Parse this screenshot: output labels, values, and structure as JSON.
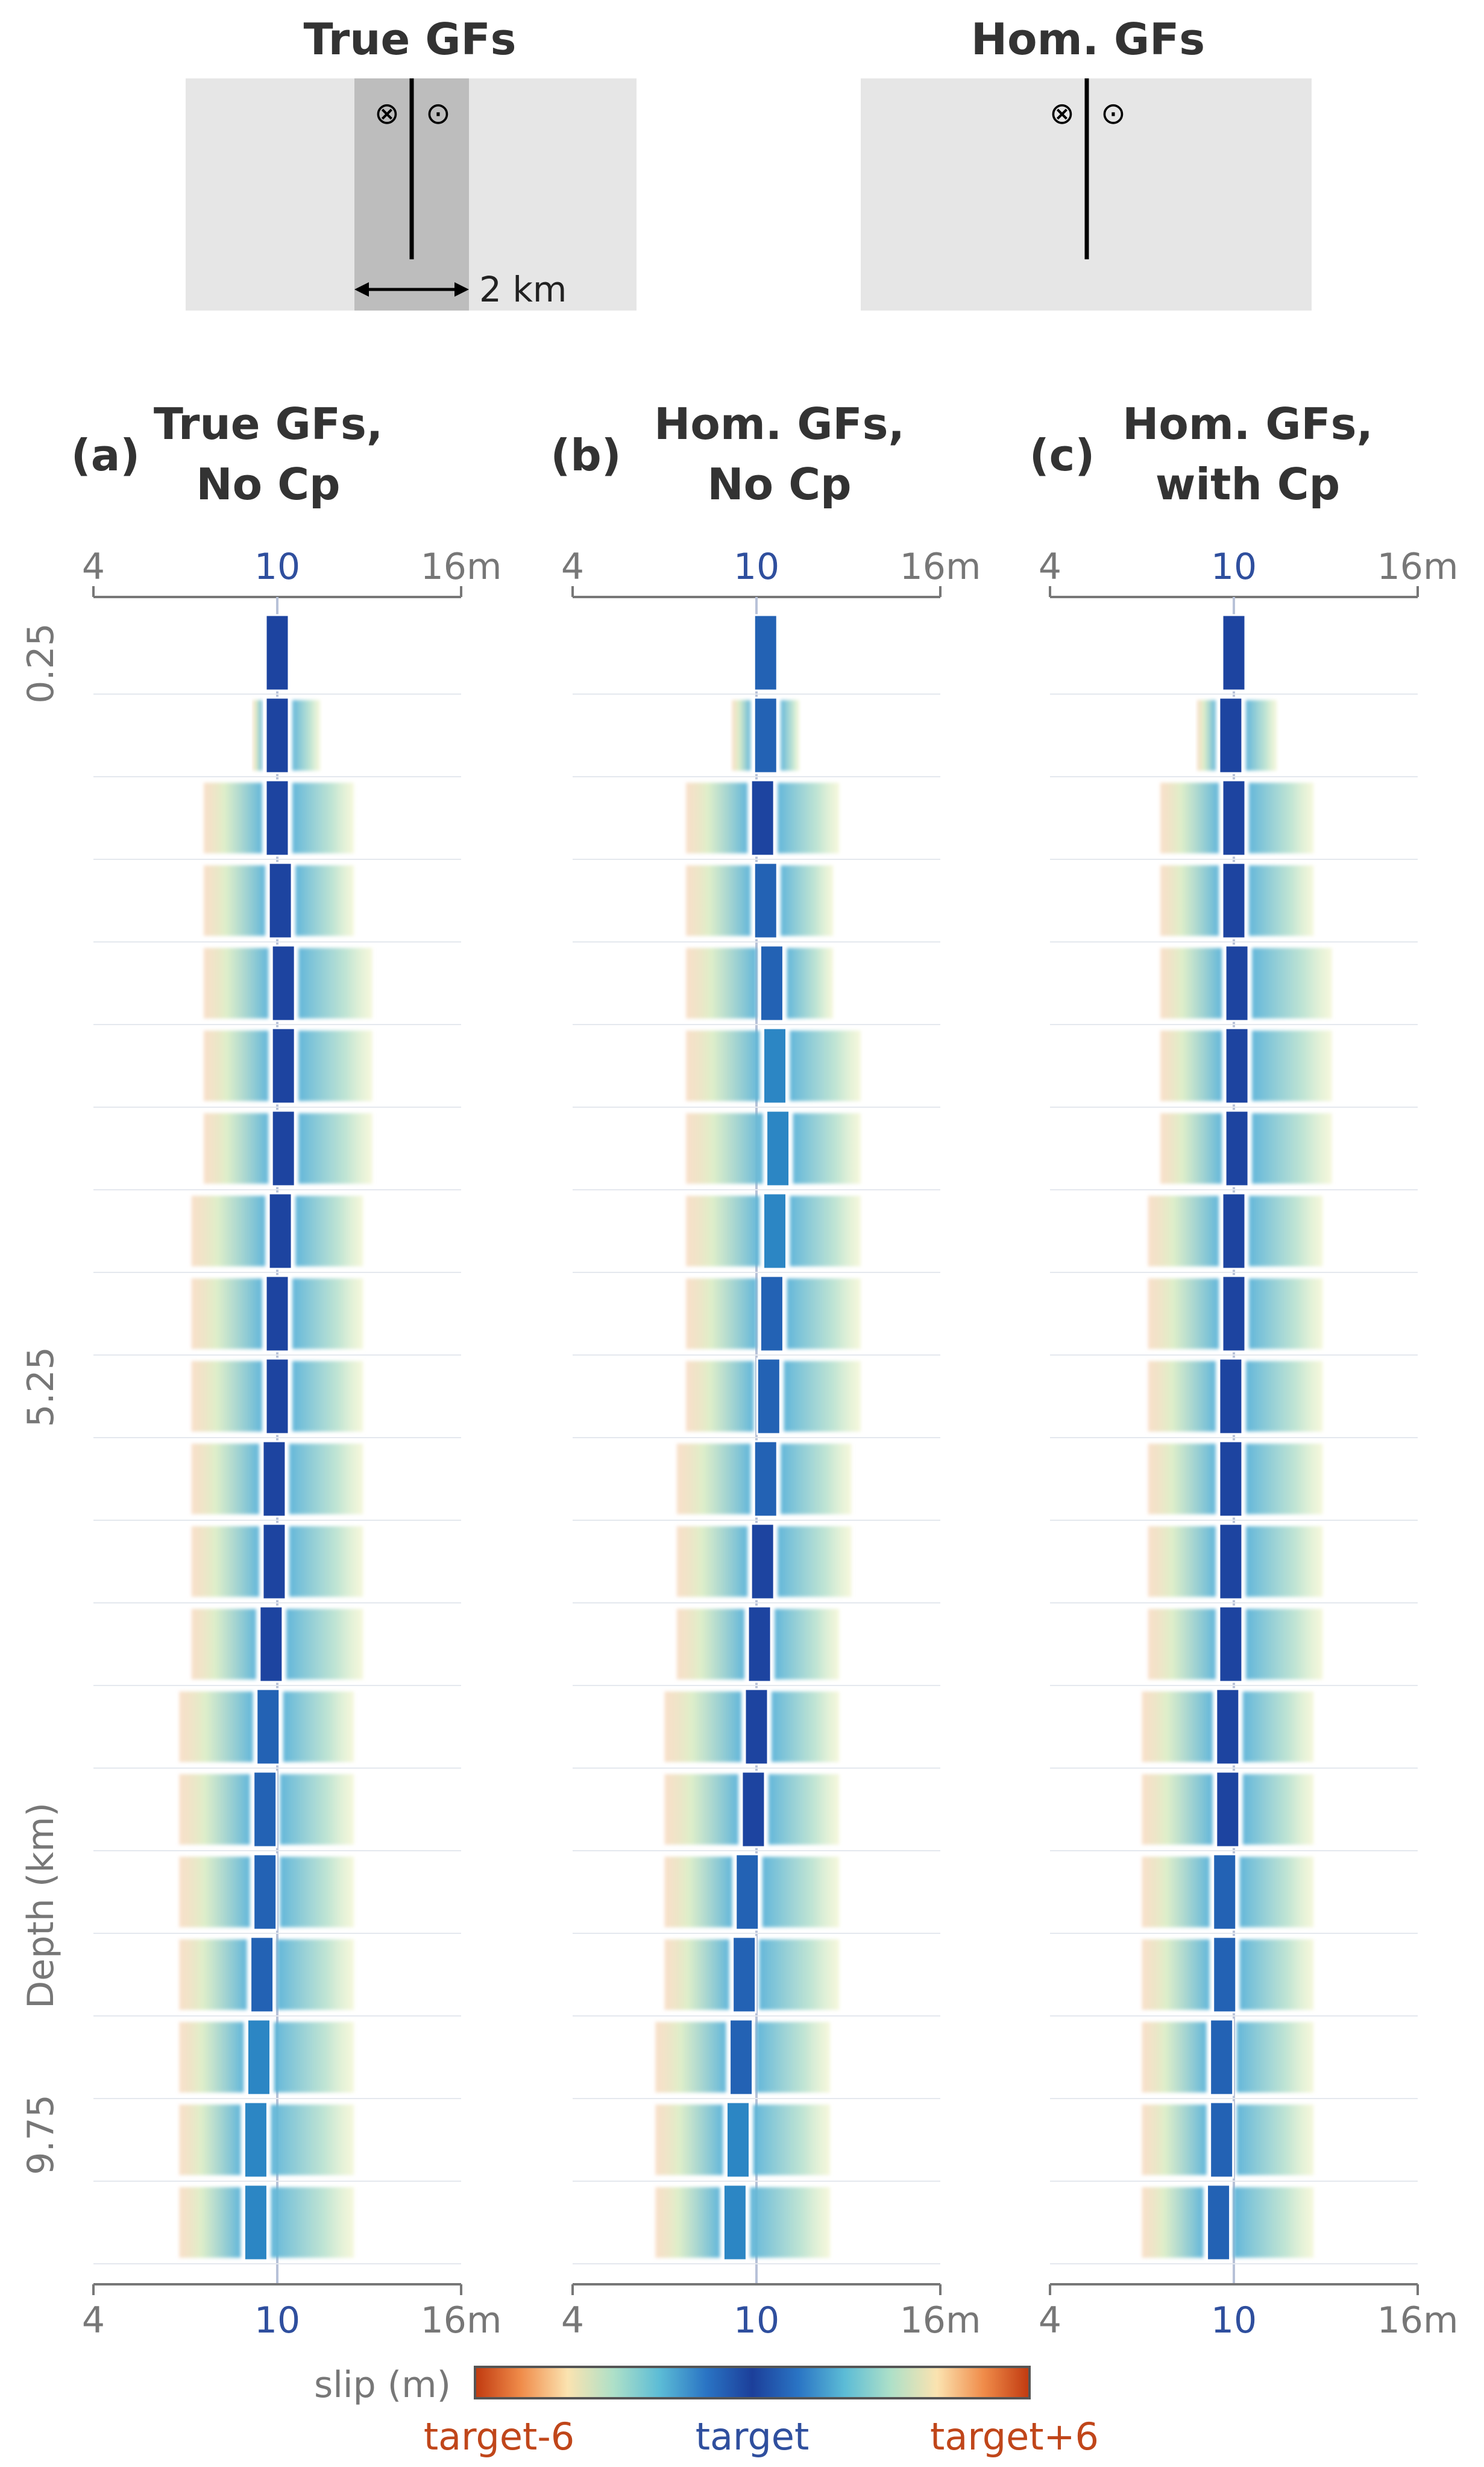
{
  "schematics": [
    {
      "title": "True GFs",
      "strike_left": "⊗",
      "strike_right": "⊙",
      "width_label": "2 km"
    },
    {
      "title": "Hom. GFs",
      "strike_left": "⊗",
      "strike_right": "⊙"
    }
  ],
  "panels": [
    {
      "label": "(a)",
      "title_line1": "True GFs,",
      "title_line2": "No Cp"
    },
    {
      "label": "(b)",
      "title_line1": "Hom. GFs,",
      "title_line2": "No Cp"
    },
    {
      "label": "(c)",
      "title_line1": "Hom. GFs,",
      "title_line2": "with Cp"
    }
  ],
  "axis": {
    "tick_min": "4",
    "tick_mid": "10",
    "tick_max": "16m",
    "x_min": 4,
    "x_mid": 10,
    "x_max": 16,
    "depth_ticks": [
      "0.25",
      "5.25",
      "9.75"
    ],
    "depth_label": "Depth (km)"
  },
  "colorbar": {
    "label": "slip (m)",
    "left": "target-6",
    "center": "target",
    "right": "target+6",
    "colors": [
      "#c0390f",
      "#f08c4a",
      "#fbe3b0",
      "#aee0c8",
      "#5cbcd6",
      "#2a74c4",
      "#1c3f9a",
      "#2a74c4",
      "#5cbcd6",
      "#aee0c8",
      "#fbe3b0",
      "#f08c4a",
      "#c0390f"
    ]
  },
  "colors": {
    "target": "#1d44a0",
    "text": "#333333",
    "axis": "#666666",
    "mid_tick": "#2f4f9e",
    "low_label": "#c0461a"
  },
  "chart_data": {
    "type": "bar",
    "n_rows": 20,
    "depth_range_km": [
      0,
      10.5
    ],
    "note_units": "slip in m",
    "series": [
      {
        "name": "(a)",
        "mean": [
          10,
          10,
          10,
          10.1,
          10.2,
          10.2,
          10.2,
          10.1,
          10,
          10,
          9.9,
          9.9,
          9.8,
          9.7,
          9.6,
          9.6,
          9.5,
          9.4,
          9.3,
          9.3
        ],
        "lower": [
          10,
          9.2,
          7.6,
          7.6,
          7.6,
          7.6,
          7.6,
          7.2,
          7.2,
          7.2,
          7.2,
          7.2,
          7.2,
          6.8,
          6.8,
          6.8,
          6.8,
          6.8,
          6.8,
          6.8
        ],
        "upper": [
          10,
          11.4,
          12.5,
          12.5,
          13.1,
          13.1,
          13.1,
          12.8,
          12.8,
          12.8,
          12.8,
          12.8,
          12.8,
          12.5,
          12.5,
          12.5,
          12.5,
          12.5,
          12.5,
          12.5
        ]
      },
      {
        "name": "(b)",
        "mean": [
          10.3,
          10.3,
          10.2,
          10.3,
          10.5,
          10.6,
          10.7,
          10.6,
          10.5,
          10.4,
          10.3,
          10.2,
          10.1,
          10,
          9.9,
          9.7,
          9.6,
          9.5,
          9.4,
          9.3
        ],
        "lower": [
          10.3,
          9.2,
          7.7,
          7.7,
          7.7,
          7.7,
          7.7,
          7.7,
          7.7,
          7.7,
          7.4,
          7.4,
          7.4,
          7,
          7,
          7,
          7,
          6.7,
          6.7,
          6.7
        ],
        "upper": [
          10.3,
          11.4,
          12.7,
          12.5,
          12.5,
          13.4,
          13.4,
          13.4,
          13.4,
          13.4,
          13.1,
          13.1,
          12.7,
          12.7,
          12.7,
          12.7,
          12.7,
          12.4,
          12.4,
          12.4
        ]
      },
      {
        "name": "(c)",
        "mean": [
          10,
          9.9,
          10,
          10,
          10.1,
          10.1,
          10.1,
          10,
          10,
          9.9,
          9.9,
          9.9,
          9.9,
          9.8,
          9.8,
          9.7,
          9.7,
          9.6,
          9.6,
          9.5
        ],
        "lower": [
          10,
          8.8,
          7.6,
          7.6,
          7.6,
          7.6,
          7.6,
          7.2,
          7.2,
          7.2,
          7.2,
          7.2,
          7.2,
          7,
          7,
          7,
          7,
          7,
          7,
          7
        ],
        "upper": [
          10,
          11.4,
          12.6,
          12.6,
          13.2,
          13.2,
          13.2,
          12.9,
          12.9,
          12.9,
          12.9,
          12.9,
          12.9,
          12.6,
          12.6,
          12.6,
          12.6,
          12.6,
          12.6,
          12.6
        ]
      }
    ]
  }
}
